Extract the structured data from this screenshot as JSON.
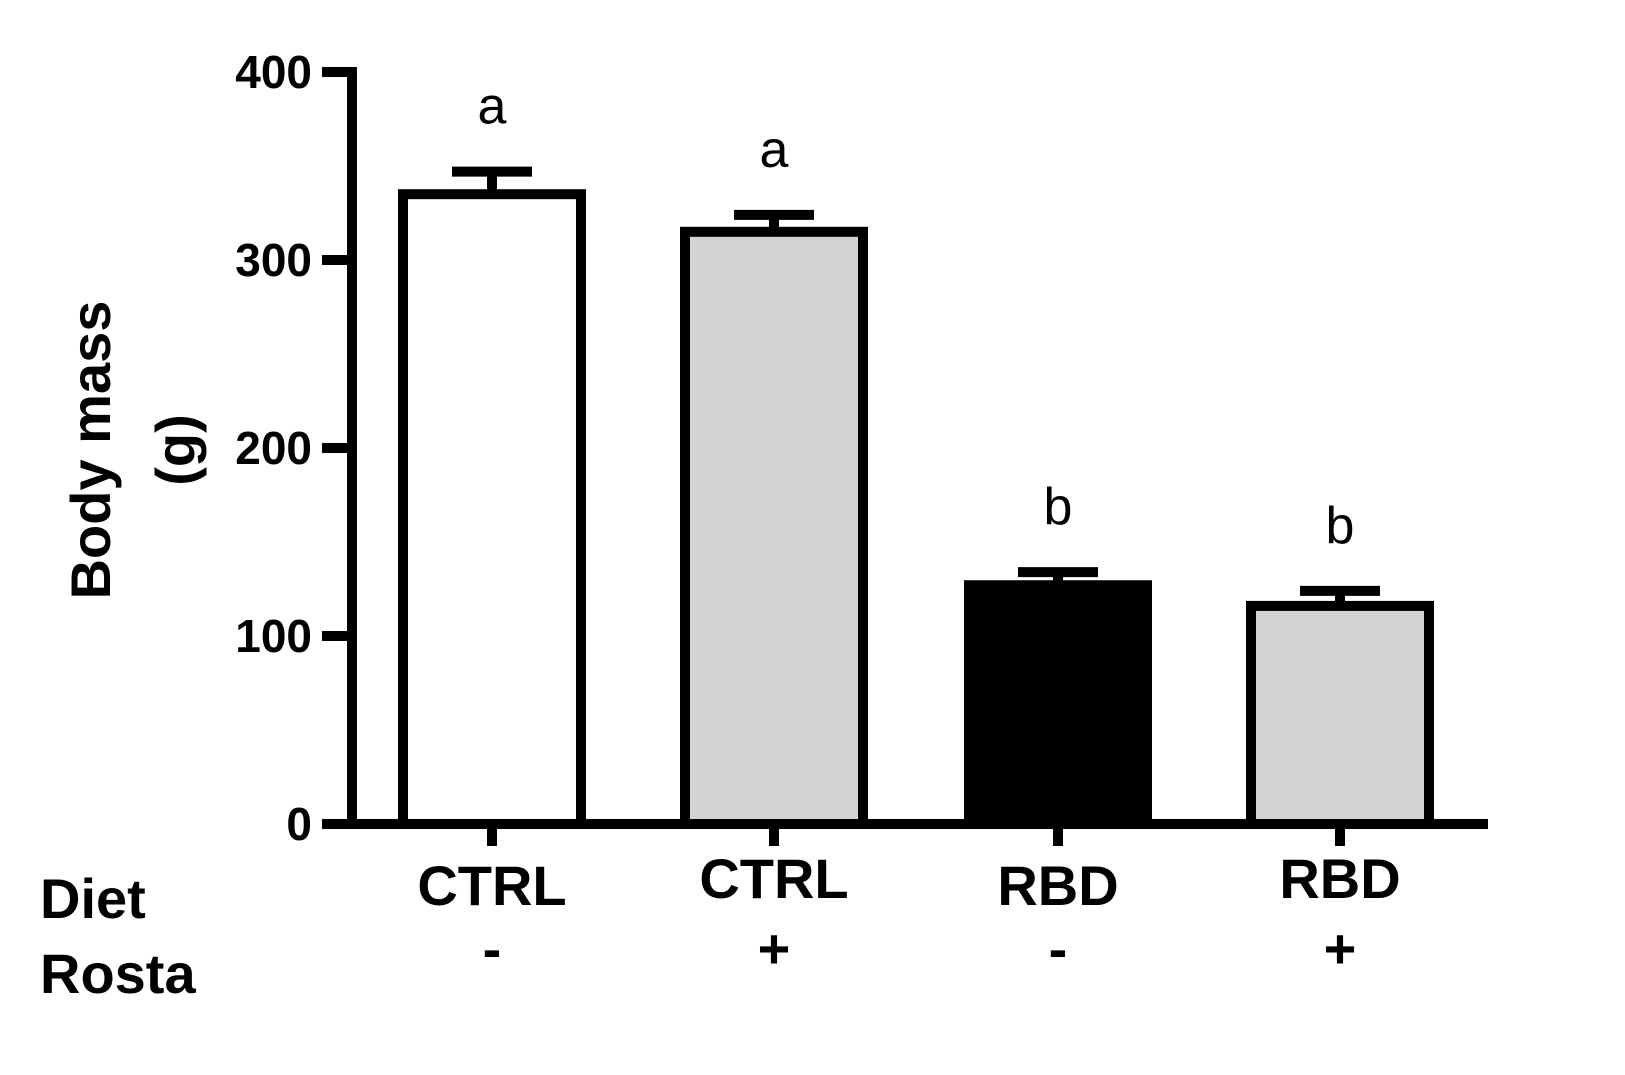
{
  "chart_data": {
    "type": "bar",
    "ylabel": [
      "Body mass",
      "(g)"
    ],
    "ylim": [
      0,
      400
    ],
    "yticks": [
      "0",
      "100",
      "200",
      "300",
      "400"
    ],
    "row_labels": [
      "Diet",
      "Rosta"
    ],
    "categories": [
      {
        "diet": "CTRL",
        "rosta": "-"
      },
      {
        "diet": "CTRL",
        "rosta": "+"
      },
      {
        "diet": "RBD",
        "rosta": "-"
      },
      {
        "diet": "RBD",
        "rosta": "+"
      }
    ],
    "values": [
      335,
      315,
      127,
      116
    ],
    "error": [
      12,
      9,
      7,
      8
    ],
    "significance": [
      "a",
      "a",
      "b",
      "b"
    ],
    "fill_colors": [
      "#ffffff",
      "#d3d3d3",
      "#000000",
      "#d3d3d3"
    ],
    "stroke_color": "#000000"
  }
}
